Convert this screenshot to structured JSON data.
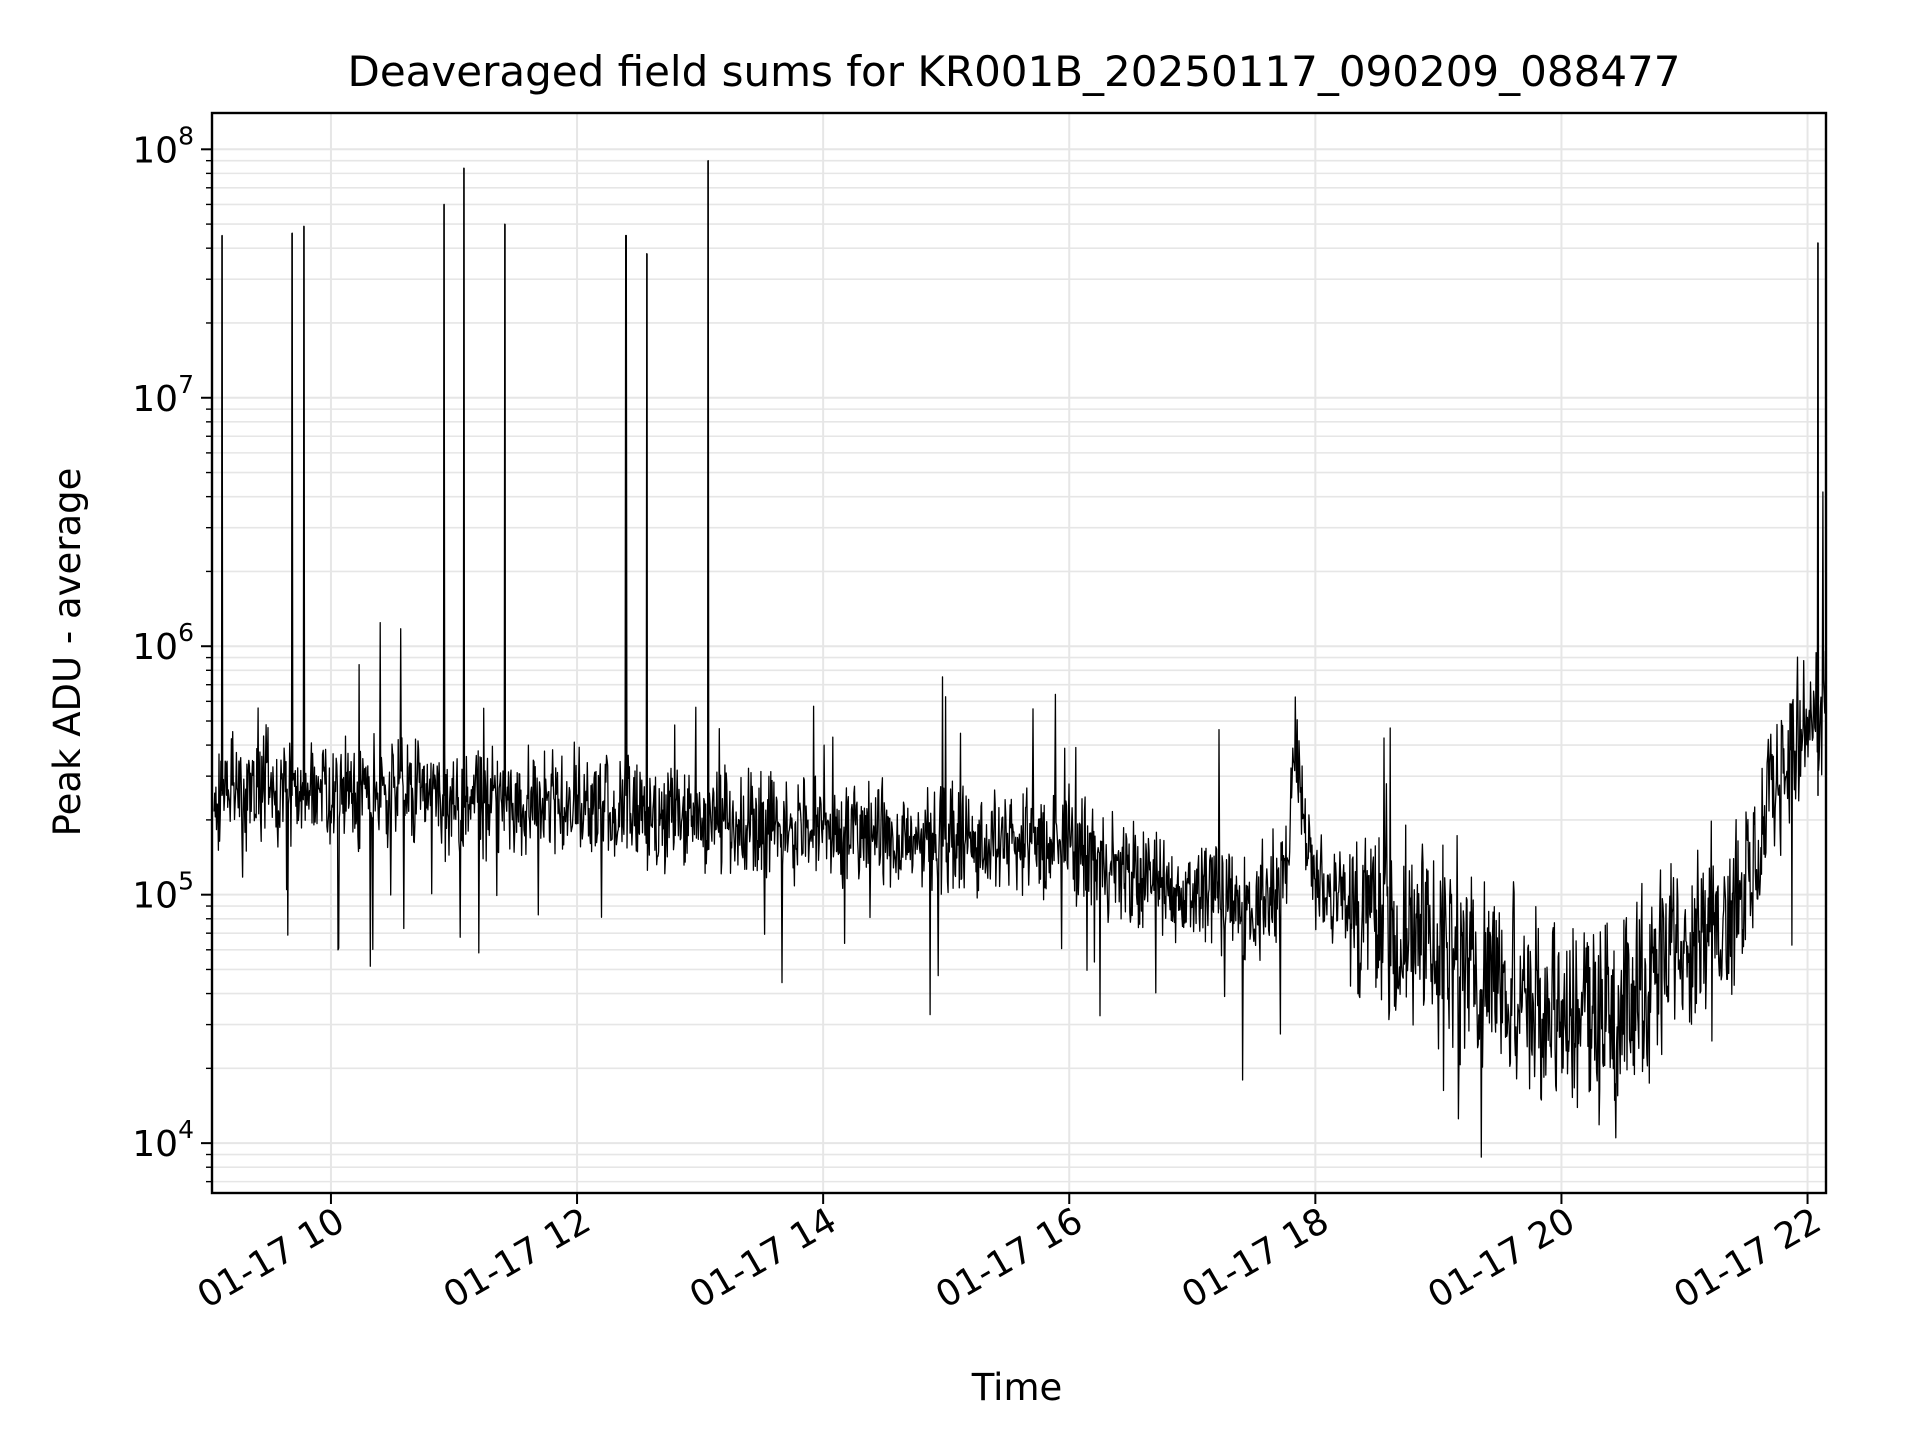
{
  "chart_data": {
    "type": "line",
    "title": "Deaveraged field sums for KR001B_20250117_090209_088477",
    "xlabel": "Time",
    "ylabel": "Peak ADU - average",
    "yscale": "log",
    "ylim": [
      6300,
      140000000
    ],
    "xlim": [
      "2025-01-17 09:02",
      "2025-01-17 22:09"
    ],
    "grid": true,
    "x_ticks": [
      "01-17 10",
      "01-17 12",
      "01-17 14",
      "01-17 16",
      "01-17 18",
      "01-17 20",
      "01-17 22"
    ],
    "y_ticks": [
      {
        "base": "10",
        "exp": "4"
      },
      {
        "base": "10",
        "exp": "5"
      },
      {
        "base": "10",
        "exp": "6"
      },
      {
        "base": "10",
        "exp": "7"
      },
      {
        "base": "10",
        "exp": "8"
      }
    ],
    "series": [
      {
        "color": "#000000",
        "x": [
          "2025-01-17 09:03",
          "2025-01-17 09:10",
          "2025-01-17 09:20",
          "2025-01-17 09:30",
          "2025-01-17 09:40",
          "2025-01-17 09:50",
          "2025-01-17 10:00",
          "2025-01-17 10:30",
          "2025-01-17 11:00",
          "2025-01-17 11:30",
          "2025-01-17 12:00",
          "2025-01-17 12:30",
          "2025-01-17 13:00",
          "2025-01-17 13:30",
          "2025-01-17 14:00",
          "2025-01-17 14:30",
          "2025-01-17 15:00",
          "2025-01-17 15:30",
          "2025-01-17 16:00",
          "2025-01-17 16:30",
          "2025-01-17 17:00",
          "2025-01-17 17:30",
          "2025-01-17 17:45",
          "2025-01-17 17:50",
          "2025-01-17 18:00",
          "2025-01-17 18:30",
          "2025-01-17 19:00",
          "2025-01-17 19:30",
          "2025-01-17 20:00",
          "2025-01-17 20:30",
          "2025-01-17 21:00",
          "2025-01-17 21:30",
          "2025-01-17 21:45",
          "2025-01-17 22:00",
          "2025-01-17 22:09"
        ],
        "y": [
          220000,
          300000,
          250000,
          280000,
          270000,
          300000,
          250000,
          260000,
          240000,
          230000,
          230000,
          210000,
          200000,
          190000,
          180000,
          170000,
          170000,
          160000,
          160000,
          120000,
          100000,
          90000,
          110000,
          400000,
          110000,
          80000,
          60000,
          45000,
          35000,
          35000,
          70000,
          100000,
          300000,
          500000,
          600000
        ],
        "spikes": [
          {
            "x": "2025-01-17 09:07",
            "y": 45000000
          },
          {
            "x": "2025-01-17 09:41",
            "y": 46000000
          },
          {
            "x": "2025-01-17 09:47",
            "y": 49000000
          },
          {
            "x": "2025-01-17 10:55",
            "y": 60000000
          },
          {
            "x": "2025-01-17 11:05",
            "y": 84000000
          },
          {
            "x": "2025-01-17 11:25",
            "y": 50000000
          },
          {
            "x": "2025-01-17 12:24",
            "y": 45000000
          },
          {
            "x": "2025-01-17 12:34",
            "y": 38000000
          },
          {
            "x": "2025-01-17 13:04",
            "y": 90000000
          },
          {
            "x": "2025-01-17 22:05",
            "y": 42000000
          }
        ]
      }
    ]
  }
}
